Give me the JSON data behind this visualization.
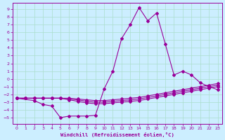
{
  "background_color": "#cceeff",
  "grid_color": "#aaddcc",
  "line_color": "#990099",
  "xlabel": "Windchill (Refroidissement éolien,°C)",
  "xlim_min": -0.5,
  "xlim_max": 23.5,
  "ylim_min": -5.8,
  "ylim_max": 9.8,
  "xticks": [
    0,
    1,
    2,
    3,
    4,
    5,
    6,
    7,
    8,
    9,
    10,
    11,
    12,
    13,
    14,
    15,
    16,
    17,
    18,
    19,
    20,
    21,
    22,
    23
  ],
  "yticks": [
    9,
    8,
    7,
    6,
    5,
    4,
    3,
    2,
    1,
    0,
    -1,
    -2,
    -3,
    -4,
    -5
  ],
  "line1_x": [
    0,
    1,
    2,
    3,
    4,
    5,
    6,
    7,
    8,
    9,
    10,
    11,
    12,
    13,
    14,
    15,
    16,
    17,
    18,
    19,
    20,
    21,
    22,
    23
  ],
  "line1_y": [
    -2.5,
    -2.5,
    -2.5,
    -2.5,
    -2.5,
    -2.5,
    -2.7,
    -2.9,
    -3.1,
    -3.2,
    -3.2,
    -3.1,
    -3.0,
    -2.9,
    -2.8,
    -2.6,
    -2.4,
    -2.2,
    -2.0,
    -1.8,
    -1.6,
    -1.4,
    -1.2,
    -1.0
  ],
  "line2_x": [
    0,
    1,
    2,
    3,
    4,
    5,
    6,
    7,
    8,
    9,
    10,
    11,
    12,
    13,
    14,
    15,
    16,
    17,
    18,
    19,
    20,
    21,
    22,
    23
  ],
  "line2_y": [
    -2.5,
    -2.5,
    -2.5,
    -2.5,
    -2.5,
    -2.5,
    -2.6,
    -2.7,
    -2.9,
    -3.0,
    -3.0,
    -2.9,
    -2.8,
    -2.7,
    -2.6,
    -2.4,
    -2.2,
    -2.0,
    -1.8,
    -1.6,
    -1.4,
    -1.2,
    -1.0,
    -0.8
  ],
  "line3_x": [
    0,
    1,
    2,
    3,
    4,
    5,
    6,
    7,
    8,
    9,
    10,
    11,
    12,
    13,
    14,
    15,
    16,
    17,
    18,
    19,
    20,
    21,
    22,
    23
  ],
  "line3_y": [
    -2.5,
    -2.5,
    -2.5,
    -2.5,
    -2.5,
    -2.5,
    -2.5,
    -2.6,
    -2.7,
    -2.8,
    -2.8,
    -2.7,
    -2.6,
    -2.5,
    -2.4,
    -2.2,
    -2.0,
    -1.8,
    -1.6,
    -1.4,
    -1.2,
    -1.0,
    -0.8,
    -0.6
  ],
  "line4_x": [
    0,
    2,
    3,
    4,
    5,
    6,
    7,
    8,
    9,
    10,
    11,
    12,
    13,
    14,
    15,
    16,
    17,
    18,
    19,
    20,
    21,
    22,
    23
  ],
  "line4_y": [
    -2.5,
    -2.8,
    -3.3,
    -3.5,
    -5.0,
    -4.8,
    -4.8,
    -4.8,
    -4.7,
    -1.3,
    1.0,
    5.2,
    7.0,
    9.2,
    7.5,
    8.5,
    4.5,
    0.5,
    1.0,
    0.5,
    -0.5,
    -1.0,
    -1.4
  ]
}
